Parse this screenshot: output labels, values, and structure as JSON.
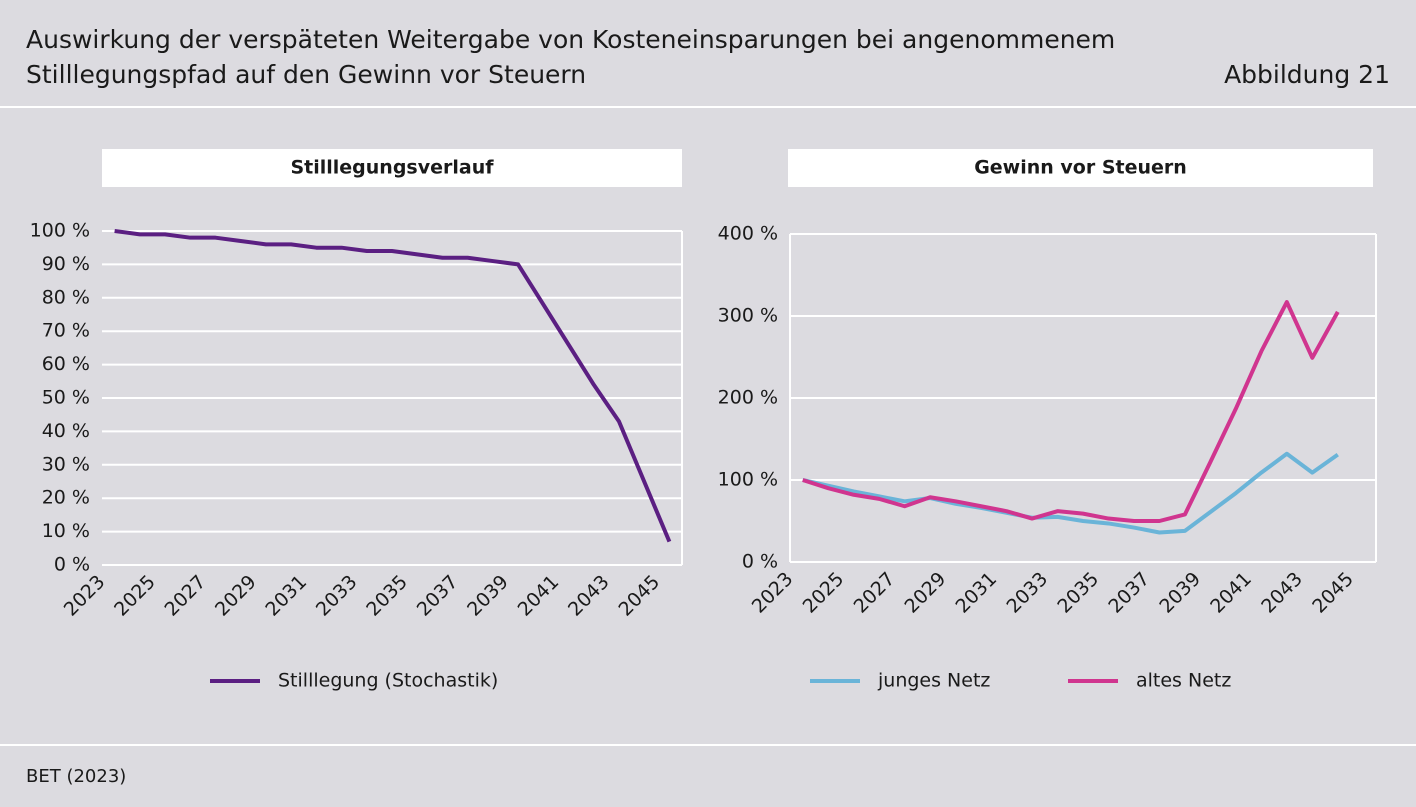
{
  "header": {
    "title_lines": [
      "Auswirkung der verspäteten Weitergabe von Kosteneinsparungen bei angenommenem",
      "Stilllegungspfad auf den Gewinn vor Steuern"
    ],
    "figure": "Abbildung 21"
  },
  "source": "BET (2023)",
  "chart_data": [
    {
      "type": "line",
      "title": "Stilllegungsverlauf",
      "categories": [
        "2023",
        null,
        "2025",
        null,
        "2027",
        null,
        "2029",
        null,
        "2031",
        null,
        "2033",
        null,
        "2035",
        null,
        "2037",
        null,
        "2039",
        null,
        "2041",
        null,
        "2043",
        null,
        "2045"
      ],
      "series": [
        {
          "name": "Stilllegung (Stochastik)",
          "color": "#5b1f82",
          "values": [
            100,
            99,
            99,
            98,
            98,
            97,
            96,
            96,
            95,
            95,
            94,
            94,
            93,
            92,
            92,
            91,
            90,
            78,
            66,
            54,
            43,
            25,
            7
          ]
        }
      ],
      "ylim": [
        0,
        100
      ],
      "yticks": [
        {
          "value": 0,
          "label": "0 %"
        },
        {
          "value": 10,
          "label": "10 %"
        },
        {
          "value": 20,
          "label": "20 %"
        },
        {
          "value": 30,
          "label": "30 %"
        },
        {
          "value": 40,
          "label": "40 %"
        },
        {
          "value": 50,
          "label": "50 %"
        },
        {
          "value": 60,
          "label": "60 %"
        },
        {
          "value": 70,
          "label": "70 %"
        },
        {
          "value": 80,
          "label": "80 %"
        },
        {
          "value": 90,
          "label": "90 %"
        },
        {
          "value": 100,
          "label": "100 %"
        }
      ],
      "grid": true
    },
    {
      "type": "line",
      "title": "Gewinn vor Steuern",
      "categories": [
        "2023",
        null,
        "2025",
        null,
        "2027",
        null,
        "2029",
        null,
        "2031",
        null,
        "2033",
        null,
        "2035",
        null,
        "2037",
        null,
        "2039",
        null,
        "2041",
        null,
        "2043",
        null,
        "2045"
      ],
      "series": [
        {
          "name": "junges Netz",
          "color": "#6ab4d8",
          "values": [
            100,
            93,
            86,
            80,
            74,
            78,
            71,
            66,
            60,
            54,
            55,
            50,
            47,
            42,
            36,
            38,
            61,
            84,
            109,
            132,
            109,
            131,
            null
          ]
        },
        {
          "name": "altes Netz",
          "color": "#d0358f",
          "values": [
            100,
            90,
            82,
            77,
            68,
            79,
            74,
            68,
            62,
            53,
            62,
            59,
            53,
            50,
            50,
            58,
            122,
            187,
            257,
            317,
            249,
            305,
            null
          ]
        }
      ],
      "ylim": [
        0,
        400
      ],
      "yticks": [
        {
          "value": 0,
          "label": "0 %"
        },
        {
          "value": 100,
          "label": "100 %"
        },
        {
          "value": 200,
          "label": "200 %"
        },
        {
          "value": 300,
          "label": "300 %"
        },
        {
          "value": 400,
          "label": "400 %"
        }
      ],
      "grid": true
    }
  ]
}
